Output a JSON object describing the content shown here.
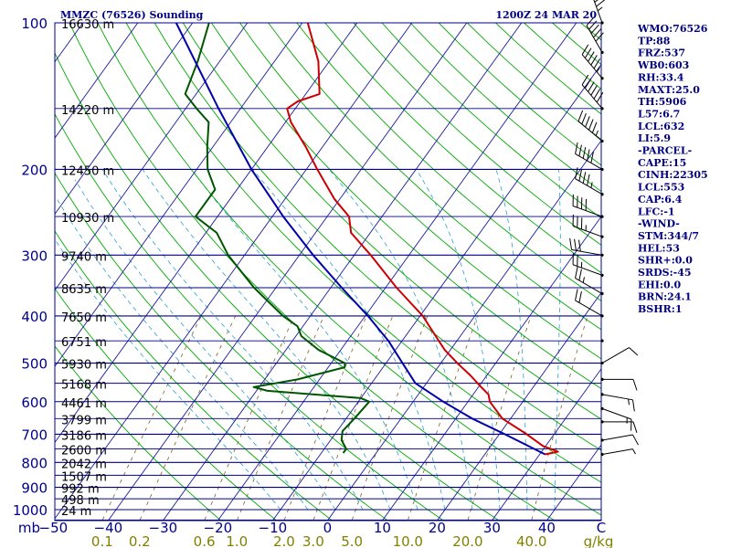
{
  "chart_data": {
    "type": "line",
    "chart_kind": "skew-T log-P sounding",
    "title": "MMZC (76526) Sounding",
    "timestamp": "1200Z 24 MAR 20",
    "y_scale": "log",
    "ylim": [
      1000,
      100
    ],
    "pressure_labels": [
      "100",
      "200",
      "300",
      "400",
      "500",
      "600",
      "700",
      "800",
      "900",
      "1000"
    ],
    "pressure_ticks": [
      100,
      200,
      300,
      400,
      500,
      600,
      700,
      800,
      900,
      1000
    ],
    "x_label_left": "mb",
    "temperature_ticks": [
      -50,
      -40,
      -30,
      -20,
      -10,
      0,
      10,
      20,
      30,
      40
    ],
    "temperature_labels": [
      "−50",
      "−40",
      "−30",
      "−20",
      "−10",
      "0",
      "10",
      "20",
      "30",
      "40"
    ],
    "temperature_end_label": "C",
    "mixing_ratio_labels": [
      "0.1",
      "0.2",
      "0.6",
      "1.0",
      "2.0",
      "3.0",
      "5.0",
      "10.0",
      "20.0",
      "40.0"
    ],
    "mixing_ratio_unit": "g/kg",
    "height_levels": [
      {
        "p": 100,
        "label": "16630 m"
      },
      {
        "p": 150,
        "label": "14220 m"
      },
      {
        "p": 200,
        "label": "12450 m"
      },
      {
        "p": 250,
        "label": "10930 m"
      },
      {
        "p": 300,
        "label": "9740 m"
      },
      {
        "p": 350,
        "label": "8635 m"
      },
      {
        "p": 400,
        "label": "7650 m"
      },
      {
        "p": 450,
        "label": "6751 m"
      },
      {
        "p": 500,
        "label": "5930 m"
      },
      {
        "p": 550,
        "label": "5168 m"
      },
      {
        "p": 600,
        "label": "4461 m"
      },
      {
        "p": 650,
        "label": "3799 m"
      },
      {
        "p": 700,
        "label": "3186 m"
      },
      {
        "p": 750,
        "label": "2600 m"
      },
      {
        "p": 800,
        "label": "2042 m"
      },
      {
        "p": 850,
        "label": "1507 m"
      },
      {
        "p": 900,
        "label": "992 m"
      },
      {
        "p": 950,
        "label": "498 m"
      },
      {
        "p": 1000,
        "label": "24 m"
      }
    ],
    "series": [
      {
        "color": "#cc0000",
        "points": [
          {
            "p": 770,
            "t": 31.0
          },
          {
            "p": 760,
            "t": 33.0
          },
          {
            "p": 740,
            "t": 29.5
          },
          {
            "p": 700,
            "t": 25.0
          },
          {
            "p": 650,
            "t": 18.5
          },
          {
            "p": 600,
            "t": 14.0
          },
          {
            "p": 580,
            "t": 12.8
          },
          {
            "p": 560,
            "t": 10.5
          },
          {
            "p": 530,
            "t": 7.0
          },
          {
            "p": 500,
            "t": 3.0
          },
          {
            "p": 470,
            "t": -1.0
          },
          {
            "p": 440,
            "t": -4.5
          },
          {
            "p": 400,
            "t": -9.5
          },
          {
            "p": 350,
            "t": -18.0
          },
          {
            "p": 300,
            "t": -27.0
          },
          {
            "p": 270,
            "t": -33.5
          },
          {
            "p": 250,
            "t": -36.0
          },
          {
            "p": 230,
            "t": -41.0
          },
          {
            "p": 200,
            "t": -48.0
          },
          {
            "p": 180,
            "t": -53.0
          },
          {
            "p": 160,
            "t": -59.0
          },
          {
            "p": 150,
            "t": -61.5
          },
          {
            "p": 145,
            "t": -60.5
          },
          {
            "p": 140,
            "t": -57.5
          },
          {
            "p": 120,
            "t": -62.0
          },
          {
            "p": 100,
            "t": -69.0
          }
        ]
      },
      {
        "color": "#005500",
        "points": [
          {
            "p": 765,
            "t": -6.0
          },
          {
            "p": 750,
            "t": -6.0
          },
          {
            "p": 720,
            "t": -8.0
          },
          {
            "p": 690,
            "t": -9.0
          },
          {
            "p": 650,
            "t": -8.5
          },
          {
            "p": 600,
            "t": -8.0
          },
          {
            "p": 590,
            "t": -10.0
          },
          {
            "p": 570,
            "t": -28.0
          },
          {
            "p": 560,
            "t": -31.0
          },
          {
            "p": 540,
            "t": -24.0
          },
          {
            "p": 510,
            "t": -17.0
          },
          {
            "p": 500,
            "t": -17.5
          },
          {
            "p": 470,
            "t": -24.0
          },
          {
            "p": 440,
            "t": -29.0
          },
          {
            "p": 420,
            "t": -31.0
          },
          {
            "p": 400,
            "t": -35.0
          },
          {
            "p": 350,
            "t": -44.0
          },
          {
            "p": 300,
            "t": -53.0
          },
          {
            "p": 270,
            "t": -58.0
          },
          {
            "p": 250,
            "t": -64.0
          },
          {
            "p": 220,
            "t": -64.0
          },
          {
            "p": 200,
            "t": -68.0
          },
          {
            "p": 180,
            "t": -71.0
          },
          {
            "p": 160,
            "t": -74.0
          },
          {
            "p": 150,
            "t": -78.0
          },
          {
            "p": 140,
            "t": -82.0
          },
          {
            "p": 120,
            "t": -84.0
          },
          {
            "p": 100,
            "t": -87.0
          }
        ]
      },
      {
        "color": "#0000aa",
        "points": [
          {
            "p": 770,
            "t": 31.0
          },
          {
            "p": 700,
            "t": 21.0
          },
          {
            "p": 650,
            "t": 13.0
          },
          {
            "p": 600,
            "t": 5.5
          },
          {
            "p": 550,
            "t": -2.0
          },
          {
            "p": 500,
            "t": -7.0
          },
          {
            "p": 450,
            "t": -12.5
          },
          {
            "p": 400,
            "t": -19.5
          },
          {
            "p": 350,
            "t": -28.0
          },
          {
            "p": 300,
            "t": -37.5
          },
          {
            "p": 250,
            "t": -48.0
          },
          {
            "p": 200,
            "t": -60.0
          },
          {
            "p": 150,
            "t": -74.0
          },
          {
            "p": 100,
            "t": -93.0
          }
        ]
      }
    ],
    "indices": [
      "WMO:76526",
      "TP:88",
      "FRZ:537",
      "WB0:603",
      "RH:33.4",
      "MAXT:25.0",
      "TH:5906",
      "L57:6.7",
      "LCL:632",
      "LI:5.9",
      "-PARCEL-",
      "CAPE:15",
      "CINH:22305",
      "LCL:553",
      "CAP:6.4",
      "LFC:-1",
      "-WIND-",
      "STM:344/7",
      "HEL:53",
      "SHR+:0.0",
      "SRDS:-45",
      "EHI:0.0",
      "BRN:24.1",
      "BSHR:1"
    ],
    "colors": {
      "isobar": "#00008b",
      "isotherm": "#1a1aa0",
      "dry_adiabat": "#00aa00",
      "moist_adiabat": "#2aa0d0",
      "mixing_ratio": "#806020",
      "title": "#000080",
      "indices": "#000080",
      "mixing_labels": "#808000",
      "axis_labels": "#00008b",
      "height_labels": "#000000"
    },
    "wind_barbs": [
      {
        "p": 100,
        "dir": 340,
        "spd": 45
      },
      {
        "p": 115,
        "dir": 330,
        "spd": 50
      },
      {
        "p": 130,
        "dir": 320,
        "spd": 55
      },
      {
        "p": 150,
        "dir": 320,
        "spd": 60
      },
      {
        "p": 175,
        "dir": 310,
        "spd": 55
      },
      {
        "p": 200,
        "dir": 300,
        "spd": 50
      },
      {
        "p": 225,
        "dir": 300,
        "spd": 45
      },
      {
        "p": 250,
        "dir": 290,
        "spd": 40
      },
      {
        "p": 275,
        "dir": 290,
        "spd": 35
      },
      {
        "p": 300,
        "dir": 280,
        "spd": 30
      },
      {
        "p": 330,
        "dir": 290,
        "spd": 25
      },
      {
        "p": 360,
        "dir": 300,
        "spd": 25
      },
      {
        "p": 400,
        "dir": 300,
        "spd": 20
      },
      {
        "p": 450,
        "dir": 280,
        "spd": 0
      },
      {
        "p": 500,
        "dir": 60,
        "spd": 10
      },
      {
        "p": 540,
        "dir": 90,
        "spd": 10
      },
      {
        "p": 580,
        "dir": 100,
        "spd": 15
      },
      {
        "p": 620,
        "dir": 110,
        "spd": 15
      },
      {
        "p": 660,
        "dir": 90,
        "spd": 10
      },
      {
        "p": 720,
        "dir": 80,
        "spd": 10
      },
      {
        "p": 770,
        "dir": 80,
        "spd": 5
      }
    ]
  }
}
